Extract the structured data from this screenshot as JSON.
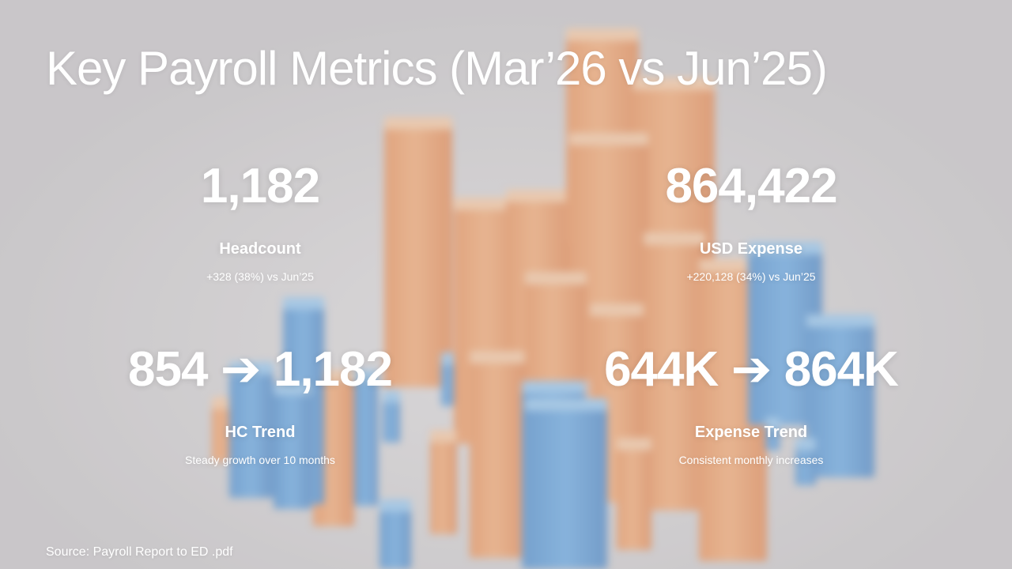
{
  "slide": {
    "title": "Key Payroll Metrics (Mar’26 vs Jun’25)",
    "source": "Source: Payroll Report to ED .pdf"
  },
  "metrics": {
    "headcount": {
      "value": "1,182",
      "label": "Headcount",
      "sub": "+328 (38%) vs Jun’25"
    },
    "usd_expense": {
      "value": "864,422",
      "label": "USD Expense",
      "sub": "+220,128 (34%) vs Jun’25"
    },
    "hc_trend": {
      "value": "854 ➔ 1,182",
      "label": "HC Trend",
      "sub": "Steady growth over 10 months"
    },
    "expense_trend": {
      "value": "644K ➔ 864K",
      "label": "Expense Trend",
      "sub": "Consistent monthly increases"
    }
  },
  "colors": {
    "text": "#ffffff",
    "background": "#c8c6c8",
    "accent_orange": "#f3a469",
    "accent_blue": "#5aa2e2"
  }
}
